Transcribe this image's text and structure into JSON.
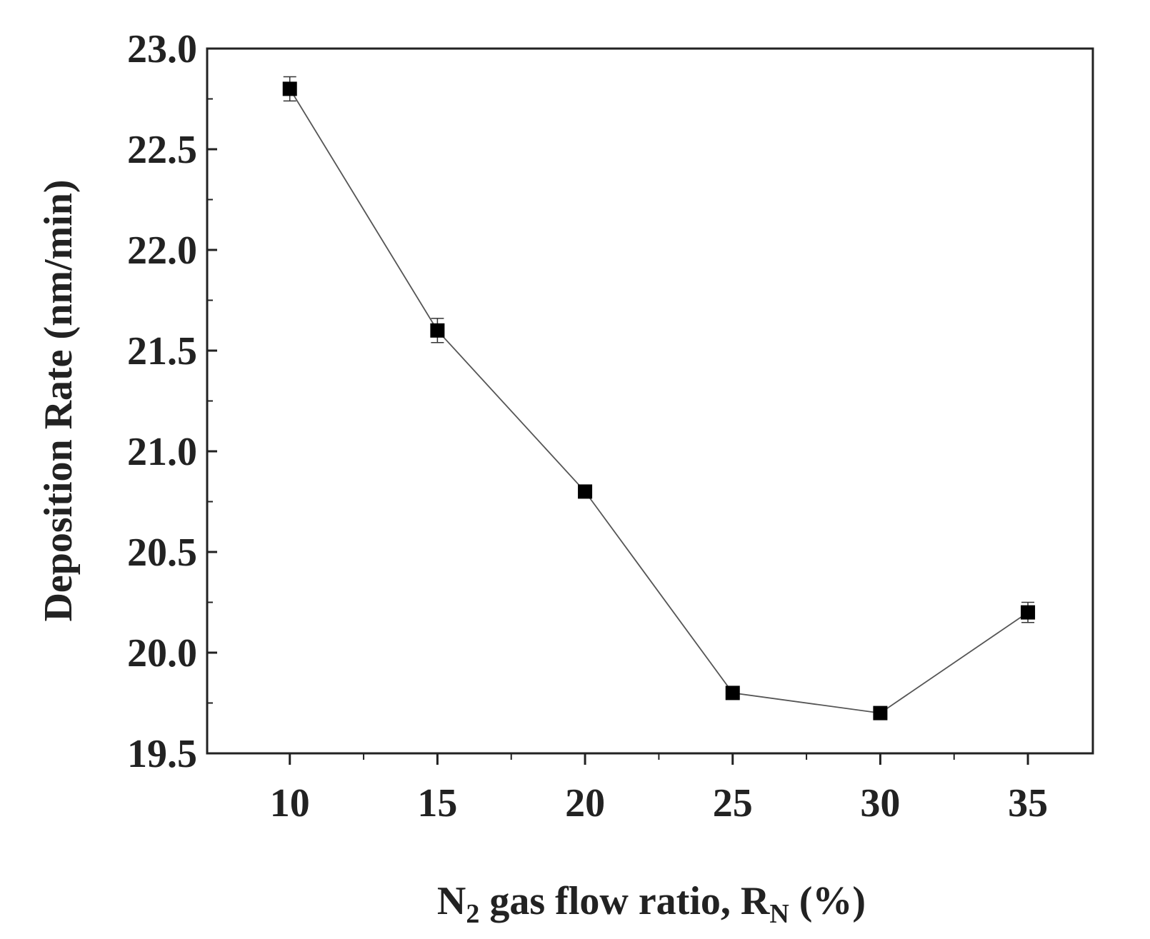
{
  "chart_data": {
    "type": "scatter",
    "xlabel": {
      "prefix": "N",
      "prefix_sub": "2",
      "middle": " gas flow ratio, R",
      "middle_sub": "N",
      "suffix": " (%)"
    },
    "ylabel": "Deposition Rate (nm/min)",
    "xlim": [
      7.2,
      37.2
    ],
    "ylim": [
      19.5,
      23.0
    ],
    "xticks": [
      10,
      15,
      20,
      25,
      30,
      35
    ],
    "xtick_labels": [
      "10",
      "15",
      "20",
      "25",
      "30",
      "35"
    ],
    "yticks": [
      19.5,
      20.0,
      20.5,
      21.0,
      21.5,
      22.0,
      22.5,
      23.0
    ],
    "ytick_labels": [
      "19.5",
      "20.0",
      "20.5",
      "21.0",
      "21.5",
      "22.0",
      "22.5",
      "23.0"
    ],
    "grid": false,
    "legend": "none",
    "series": [
      {
        "x": [
          10,
          15,
          20,
          25,
          30,
          35
        ],
        "y": [
          22.8,
          21.6,
          20.8,
          19.8,
          19.7,
          20.2
        ],
        "error": [
          0.06,
          0.06,
          0.02,
          0.02,
          0.02,
          0.05
        ],
        "marker": "square",
        "line": "solid"
      }
    ],
    "colors": {
      "marker": "#000000",
      "line": "#555555",
      "axis": "#222222"
    }
  }
}
